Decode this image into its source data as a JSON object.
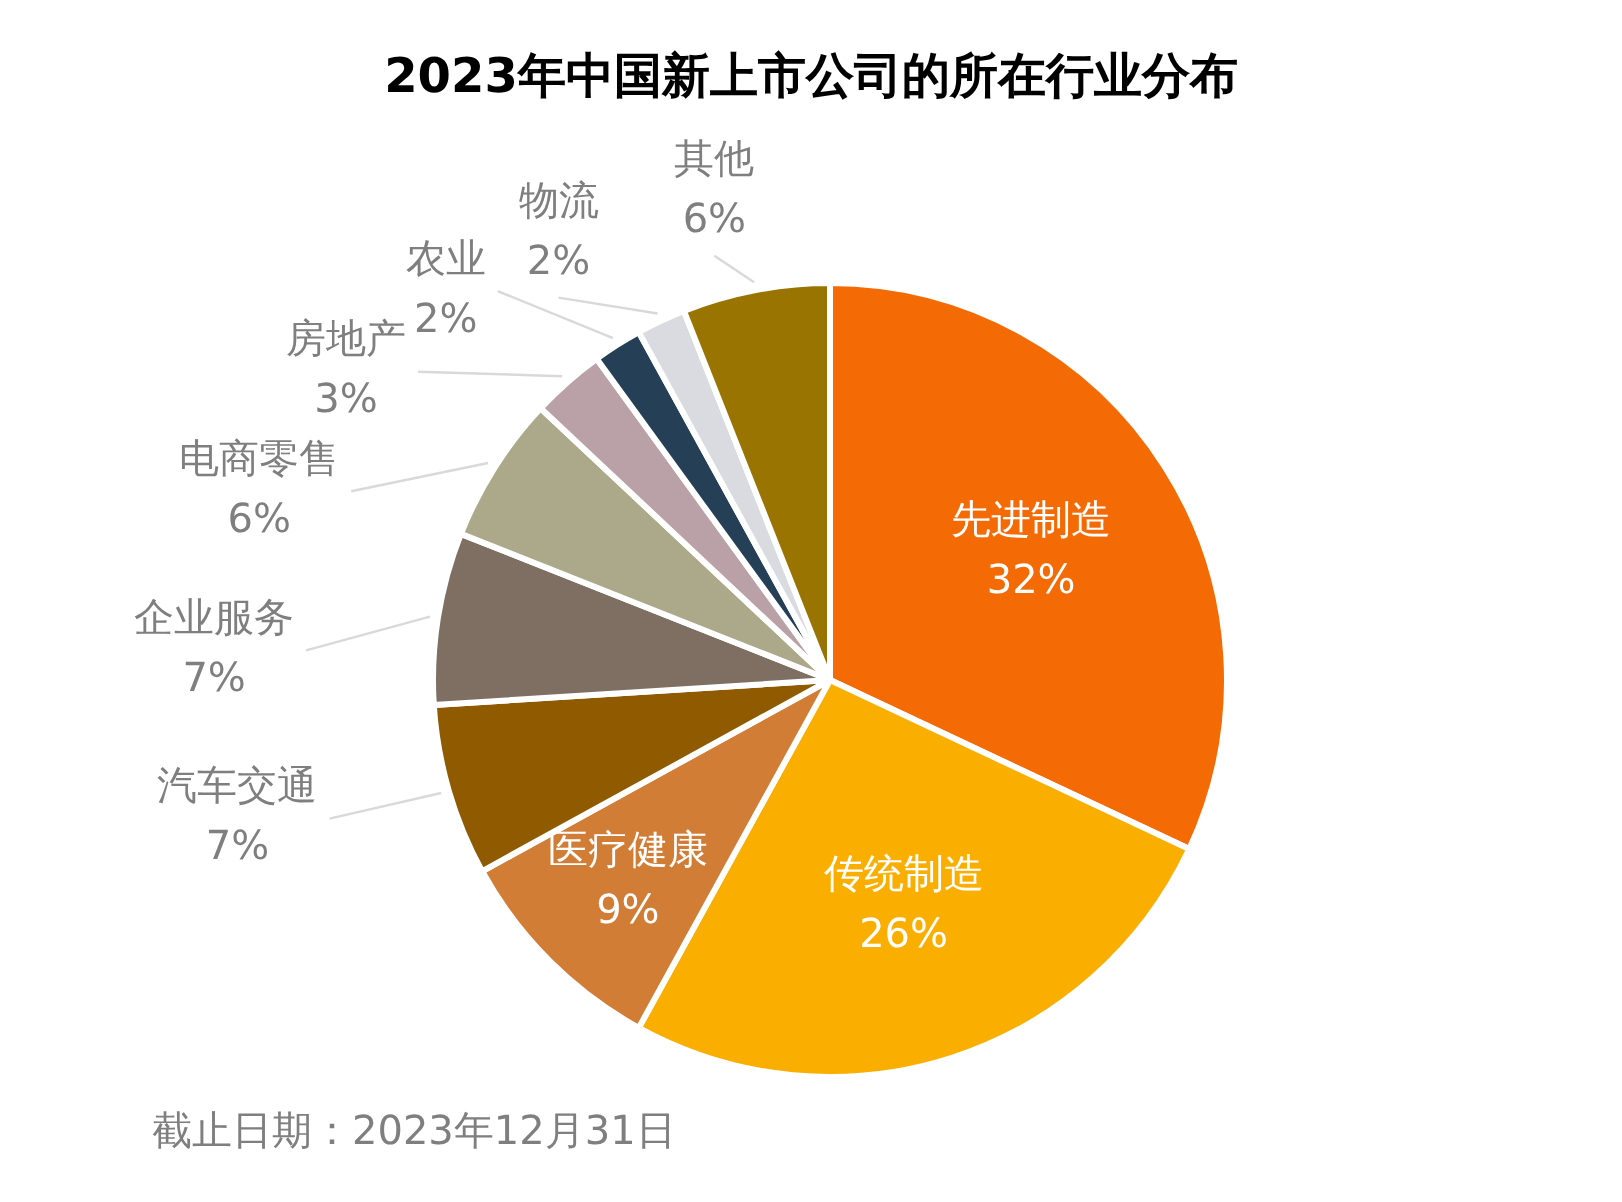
{
  "chart_data": {
    "type": "pie",
    "title": "2023年中国新上市公司的所在行业分布",
    "categories": [
      "先进制造",
      "传统制造",
      "医疗健康",
      "汽车交通",
      "企业服务",
      "电商零售",
      "房地产",
      "农业",
      "物流",
      "其他"
    ],
    "values": [
      32,
      26,
      9,
      7,
      7,
      6,
      3,
      2,
      2,
      6
    ],
    "value_labels": [
      "32%",
      "26%",
      "9%",
      "7%",
      "7%",
      "6%",
      "3%",
      "2%",
      "2%",
      "6%"
    ],
    "colors": [
      "#f46a04",
      "#f9ae00",
      "#d27d36",
      "#8f5a00",
      "#7f6f63",
      "#aca88a",
      "#b9a1a7",
      "#253f57",
      "#d9dbe0",
      "#9a7400"
    ],
    "legend": false,
    "annotations": [
      "截止日期：2023年12月31日"
    ]
  }
}
